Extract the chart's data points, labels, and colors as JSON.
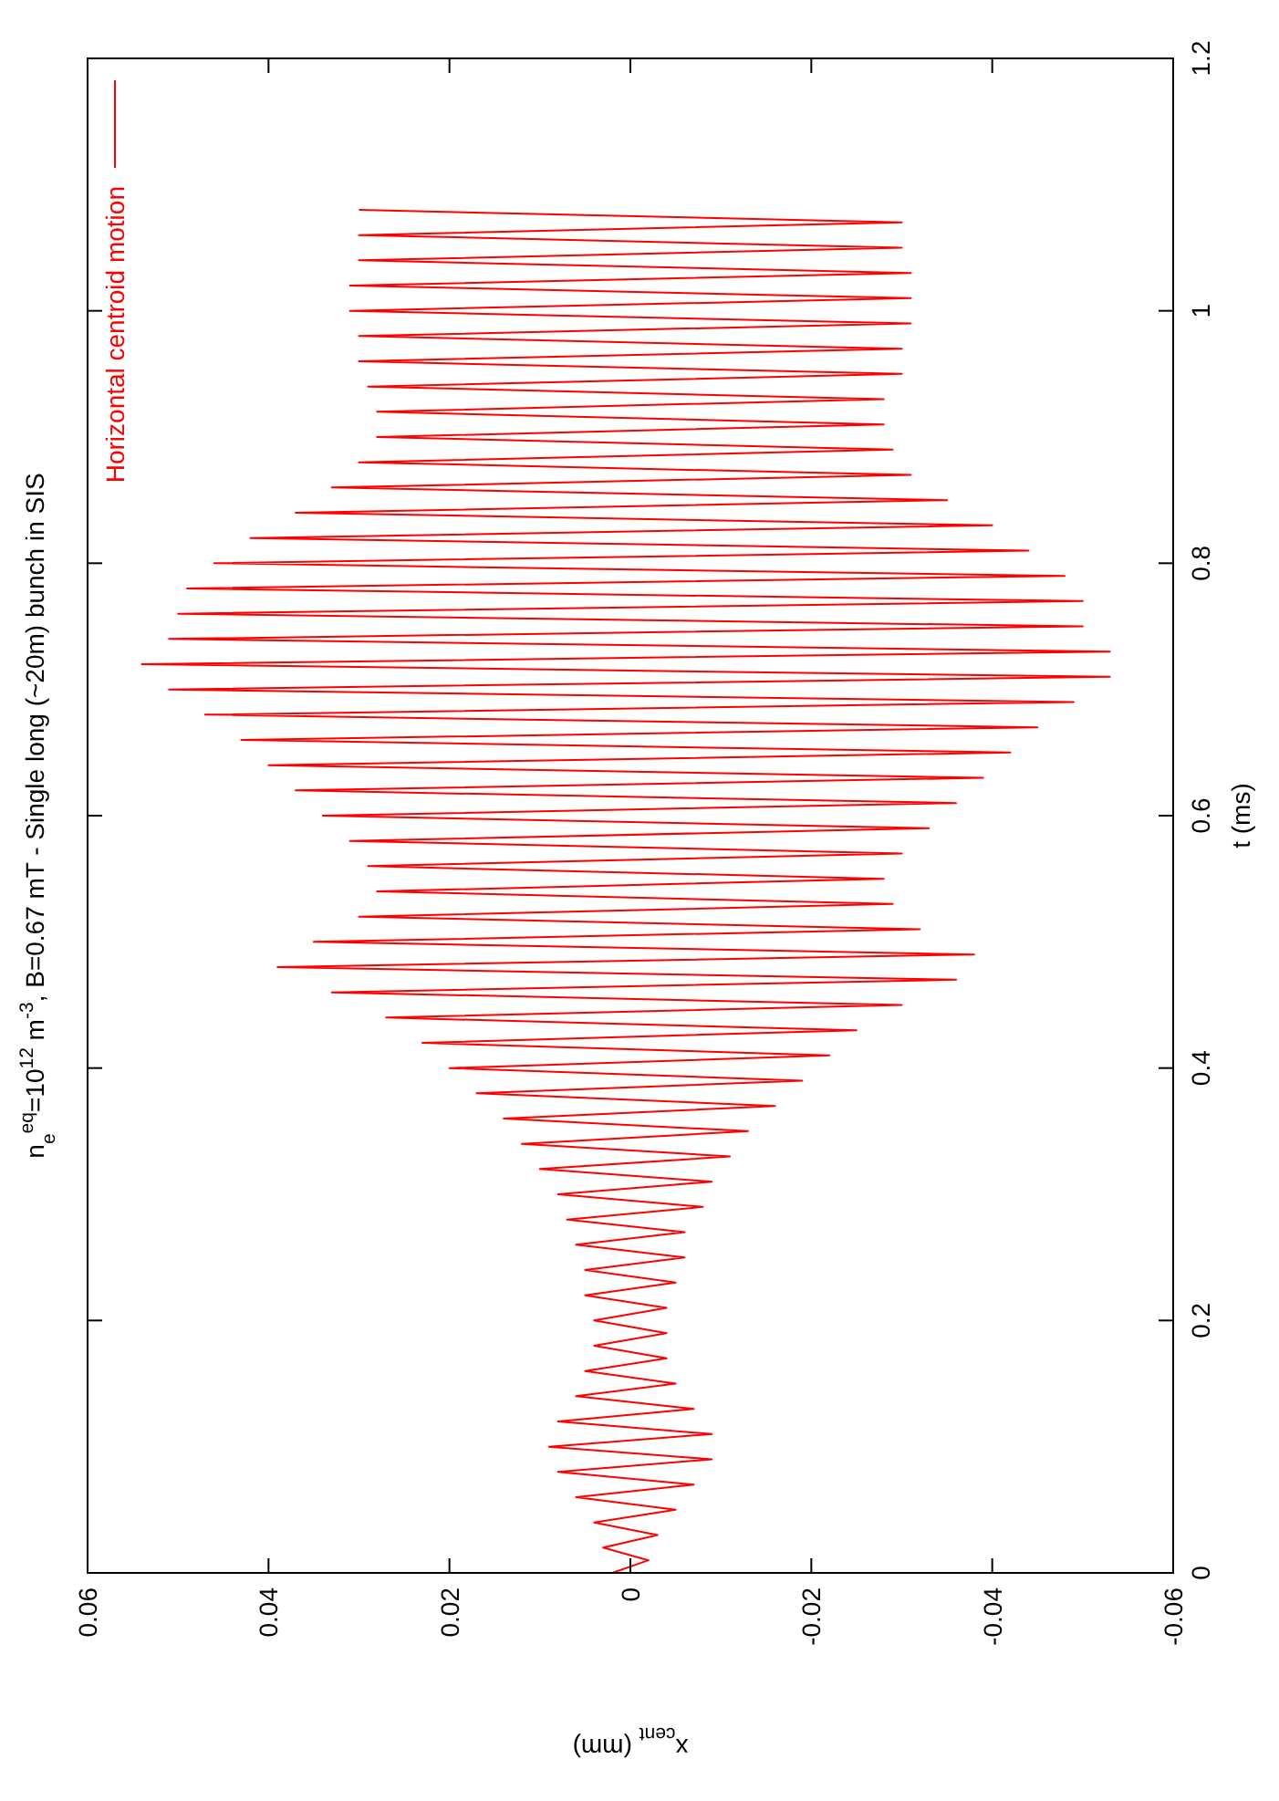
{
  "chart_data": {
    "type": "line",
    "title": "n$_{e}$$^{eq}$=10$^{12}$ m$^{-3}$, B=0.67 mT - Single long (~20m) bunch in SIS",
    "ylabel": "t (ms)",
    "xlabel": "x$_{cent}$ (mm)",
    "ylim": [
      0,
      1.2
    ],
    "yticks": [
      0,
      0.2,
      0.4,
      0.6,
      0.8,
      1,
      1.2
    ],
    "xlim": [
      0.06,
      -0.06
    ],
    "xticks": [
      0.06,
      0.04,
      0.02,
      0,
      -0.02,
      -0.04,
      -0.06
    ],
    "grid": false,
    "legend": "top left",
    "marker": "none",
    "line_style": "solid",
    "series": [
      {
        "name": "Horizontal centroid motion",
        "color": "#ff0000",
        "values": [
          0,
          0.01,
          0.02,
          0.03,
          0.04,
          0.05,
          0.06,
          0.07,
          0.08,
          0.09,
          0.1,
          0.11,
          0.12,
          0.13,
          0.14,
          0.15,
          0.16,
          0.17,
          0.18,
          0.19,
          0.2,
          0.21,
          0.22,
          0.23,
          0.24,
          0.25,
          0.26,
          0.27,
          0.28,
          0.29,
          0.3,
          0.31,
          0.32,
          0.33,
          0.34,
          0.35,
          0.36,
          0.37,
          0.38,
          0.39,
          0.4,
          0.41,
          0.42,
          0.43,
          0.44,
          0.45,
          0.46,
          0.47,
          0.48,
          0.49,
          0.5,
          0.51,
          0.52,
          0.53,
          0.54,
          0.55,
          0.56,
          0.57,
          0.58,
          0.59,
          0.6,
          0.61,
          0.62,
          0.63,
          0.64,
          0.65,
          0.66,
          0.67,
          0.68,
          0.69,
          0.7,
          0.71,
          0.72,
          0.73,
          0.74,
          0.75,
          0.76,
          0.77,
          0.78,
          0.79,
          0.8,
          0.81,
          0.82,
          0.83,
          0.84,
          0.85,
          0.86,
          0.87,
          0.88,
          0.89,
          0.9,
          0.91,
          0.92,
          0.93,
          0.94,
          0.95,
          0.96,
          0.97,
          0.98,
          0.99,
          1,
          1.01,
          1.02,
          1.03,
          1.04,
          1.05,
          1.06,
          1.07,
          1.08
        ],
        "x": [
          0.002,
          -0.002,
          0.003,
          -0.003,
          0.004,
          -0.005,
          0.006,
          -0.007,
          0.008,
          -0.009,
          0.009,
          -0.009,
          0.008,
          -0.007,
          0.006,
          -0.005,
          0.005,
          -0.004,
          0.004,
          -0.004,
          0.004,
          -0.004,
          0.005,
          -0.005,
          0.005,
          -0.006,
          0.006,
          -0.006,
          0.007,
          -0.008,
          0.008,
          -0.009,
          0.01,
          -0.011,
          0.012,
          -0.013,
          0.014,
          -0.016,
          0.017,
          -0.019,
          0.02,
          -0.022,
          0.023,
          -0.025,
          0.027,
          -0.03,
          0.033,
          -0.036,
          0.039,
          -0.038,
          0.035,
          -0.032,
          0.03,
          -0.029,
          0.028,
          -0.028,
          0.029,
          -0.03,
          0.031,
          -0.033,
          0.034,
          -0.036,
          0.037,
          -0.039,
          0.04,
          -0.042,
          0.043,
          -0.045,
          0.047,
          -0.049,
          0.051,
          -0.053,
          0.054,
          -0.053,
          0.051,
          -0.05,
          0.05,
          -0.05,
          0.049,
          -0.048,
          0.046,
          -0.044,
          0.042,
          -0.04,
          0.037,
          -0.035,
          0.033,
          -0.031,
          0.03,
          -0.029,
          0.028,
          -0.028,
          0.028,
          -0.028,
          0.029,
          -0.03,
          0.03,
          -0.03,
          0.03,
          -0.031,
          0.031,
          -0.031,
          0.031,
          -0.031,
          0.03,
          -0.03,
          0.03,
          -0.03,
          0.03
        ]
      }
    ]
  }
}
